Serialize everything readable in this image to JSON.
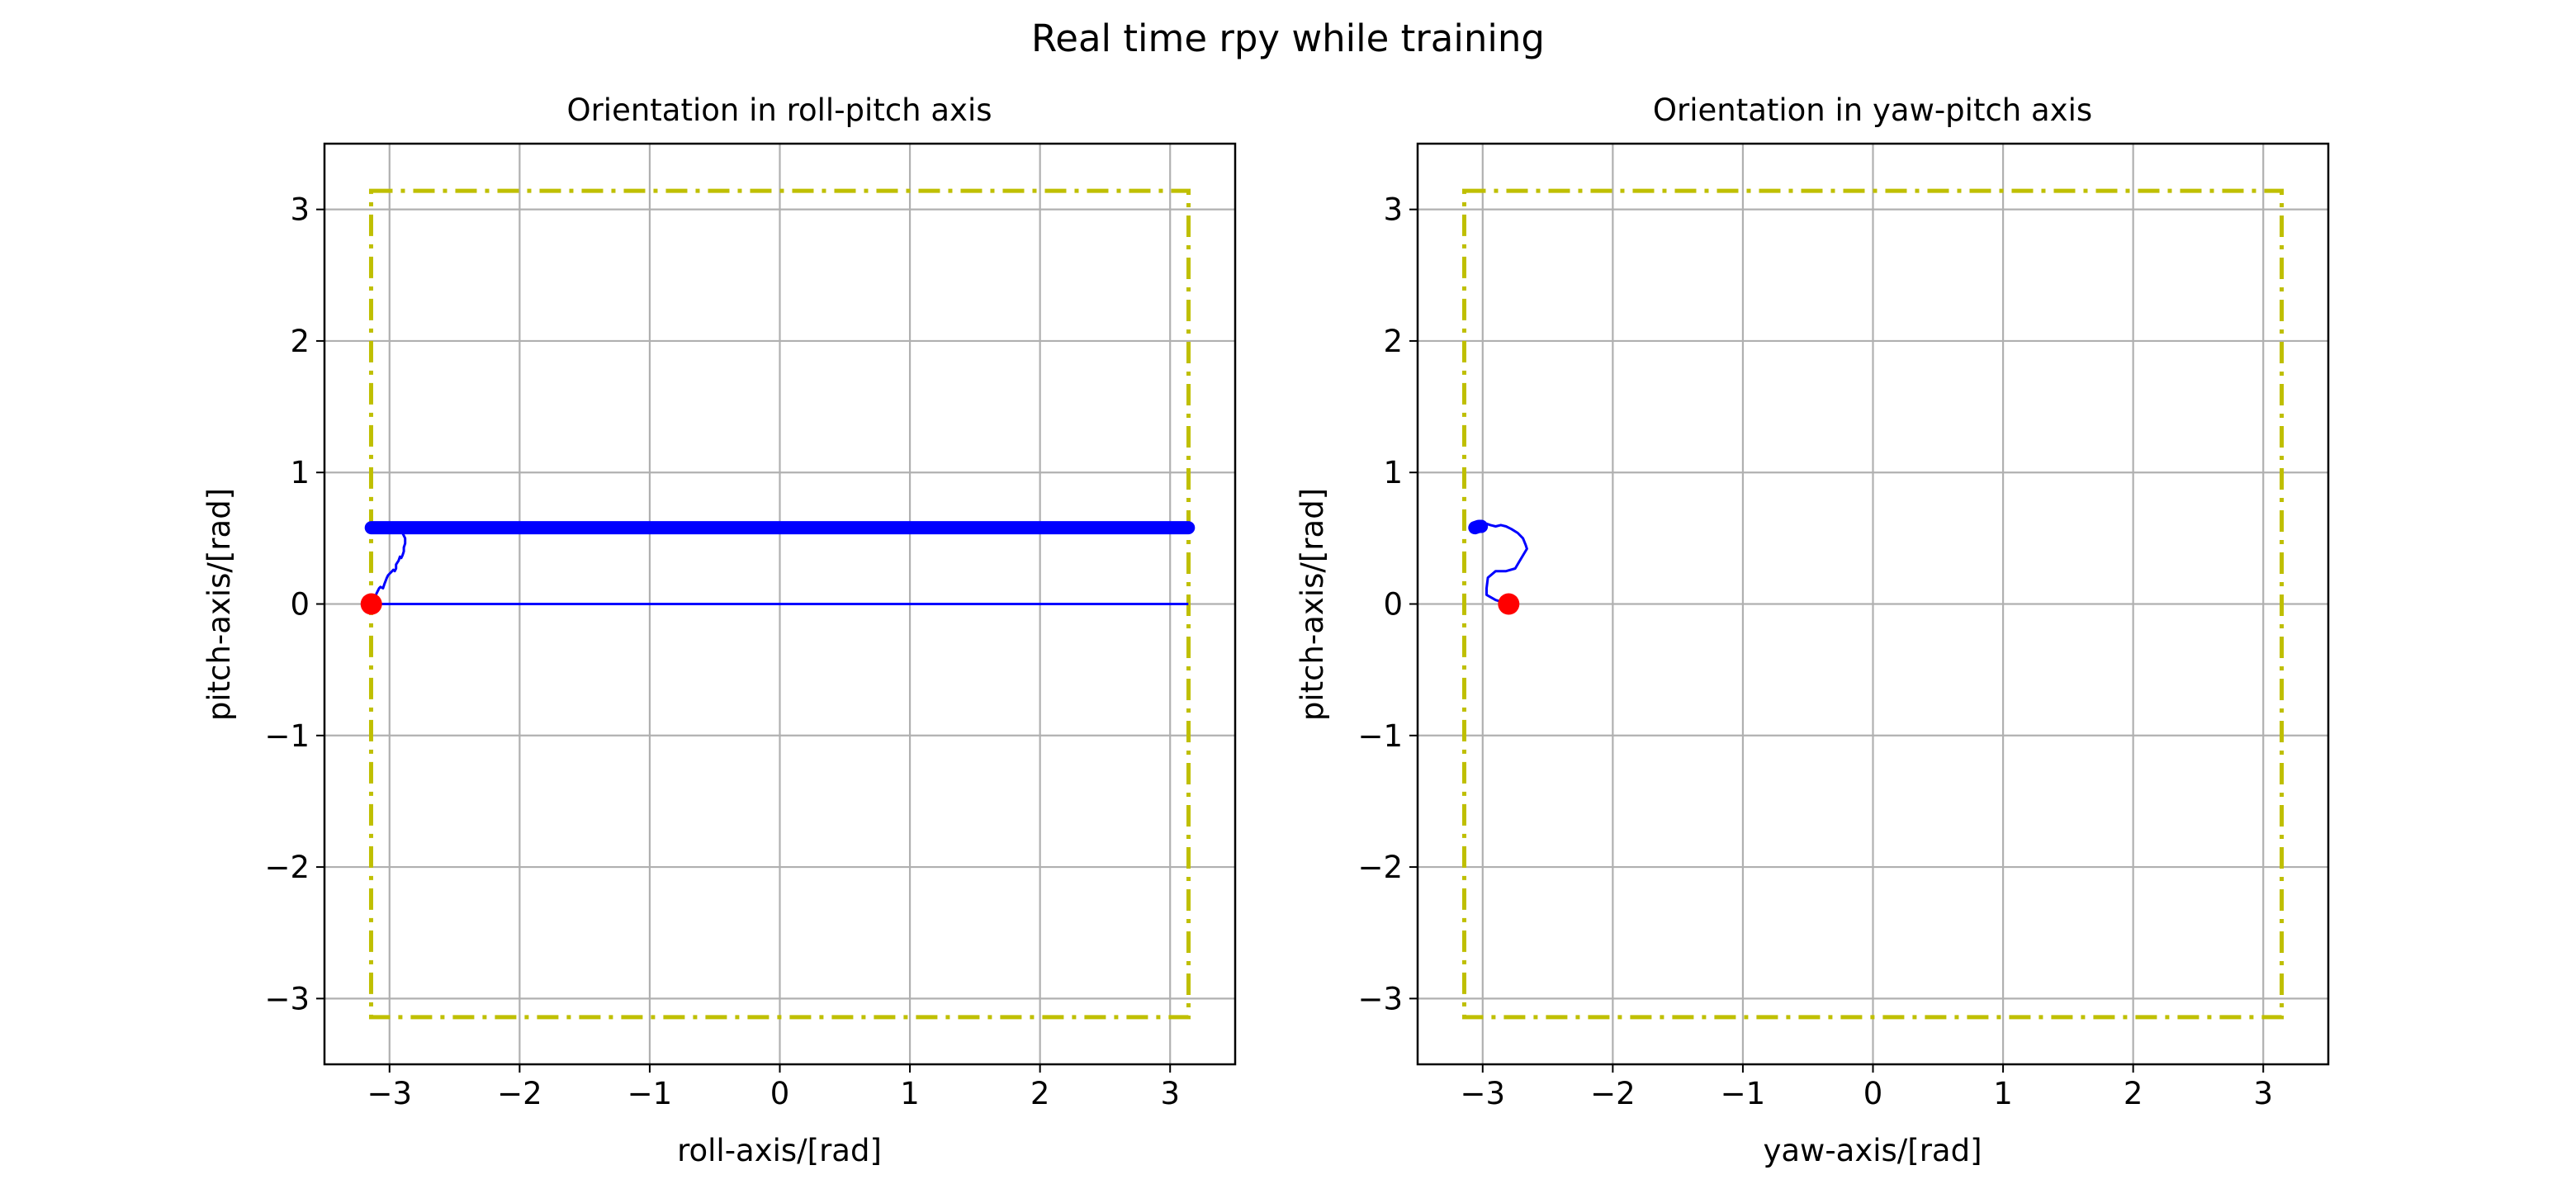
{
  "figure": {
    "suptitle": "Real time rpy while training",
    "colors": {
      "background": "#ffffff",
      "grid": "#b0b0b0",
      "trajectory": "#0000ff",
      "start_marker": "#ff0000",
      "boundary": "#bfbf00",
      "axes_frame": "#000000"
    }
  },
  "chart_data": [
    {
      "type": "line",
      "title": "Orientation in roll-pitch axis",
      "xlabel": "roll-axis/[rad]",
      "ylabel": "pitch-axis/[rad]",
      "xlim": [
        -3.5,
        3.5
      ],
      "ylim": [
        -3.5,
        3.5
      ],
      "xticks": [
        -3,
        -2,
        -1,
        0,
        1,
        2,
        3
      ],
      "yticks": [
        -3,
        -2,
        -1,
        0,
        1,
        2,
        3
      ],
      "xtick_labels": [
        "−3",
        "−2",
        "−1",
        "0",
        "1",
        "2",
        "3"
      ],
      "ytick_labels": [
        "−3",
        "−2",
        "−1",
        "0",
        "1",
        "2",
        "3"
      ],
      "grid": true,
      "boundary": {
        "style": "dash-dot",
        "x": [
          -3.1416,
          3.1416
        ],
        "y": [
          -3.1416,
          3.1416
        ]
      },
      "start_point": {
        "x": -3.14,
        "y": 0.0
      },
      "series": [
        {
          "style": "thin",
          "x": [
            -3.14,
            -3.13,
            -3.11,
            -3.1,
            -3.08,
            -3.07,
            -3.05,
            -3.04,
            -3.02,
            -3.01,
            -2.99,
            -2.97,
            -2.96,
            -2.95,
            -2.95,
            -2.93,
            -2.92,
            -2.91,
            -2.9,
            -2.89,
            -2.89,
            -2.88,
            -2.88,
            -2.89,
            -2.9,
            -2.92,
            -2.94,
            -2.96,
            -3.0,
            -3.05,
            -3.1,
            -3.14
          ],
          "y": [
            0.0,
            0.02,
            0.05,
            0.08,
            0.12,
            0.13,
            0.12,
            0.15,
            0.2,
            0.22,
            0.24,
            0.26,
            0.25,
            0.27,
            0.3,
            0.33,
            0.36,
            0.35,
            0.37,
            0.4,
            0.43,
            0.46,
            0.5,
            0.52,
            0.54,
            0.56,
            0.57,
            0.58,
            0.59,
            0.6,
            0.6,
            0.6
          ]
        },
        {
          "style": "thin",
          "x": [
            -3.14,
            3.14
          ],
          "y": [
            0.0,
            0.0
          ]
        },
        {
          "style": "thick",
          "x": [
            -3.14,
            3.14
          ],
          "y": [
            0.58,
            0.58
          ]
        }
      ]
    },
    {
      "type": "line",
      "title": "Orientation in yaw-pitch axis",
      "xlabel": "yaw-axis/[rad]",
      "ylabel": "pitch-axis/[rad]",
      "xlim": [
        -3.5,
        3.5
      ],
      "ylim": [
        -3.5,
        3.5
      ],
      "xticks": [
        -3,
        -2,
        -1,
        0,
        1,
        2,
        3
      ],
      "yticks": [
        -3,
        -2,
        -1,
        0,
        1,
        2,
        3
      ],
      "xtick_labels": [
        "−3",
        "−2",
        "−1",
        "0",
        "1",
        "2",
        "3"
      ],
      "ytick_labels": [
        "−3",
        "−2",
        "−1",
        "0",
        "1",
        "2",
        "3"
      ],
      "grid": true,
      "boundary": {
        "style": "dash-dot",
        "x": [
          -3.1416,
          3.1416
        ],
        "y": [
          -3.1416,
          3.1416
        ]
      },
      "start_point": {
        "x": -2.8,
        "y": 0.0
      },
      "series": [
        {
          "style": "thin",
          "x": [
            -2.8,
            -2.9,
            -2.97,
            -2.97,
            -2.96,
            -2.9,
            -2.82,
            -2.75,
            -2.72,
            -2.69,
            -2.66,
            -2.67,
            -2.69,
            -2.73,
            -2.78,
            -2.82,
            -2.86,
            -2.9,
            -2.94,
            -2.97,
            -3.0
          ],
          "y": [
            0.0,
            0.03,
            0.07,
            0.12,
            0.2,
            0.25,
            0.25,
            0.27,
            0.32,
            0.37,
            0.42,
            0.45,
            0.5,
            0.54,
            0.57,
            0.59,
            0.6,
            0.59,
            0.6,
            0.61,
            0.58
          ]
        },
        {
          "style": "thick",
          "x": [
            -3.06,
            -3.03,
            -3.01
          ],
          "y": [
            0.58,
            0.59,
            0.59
          ]
        }
      ]
    }
  ]
}
